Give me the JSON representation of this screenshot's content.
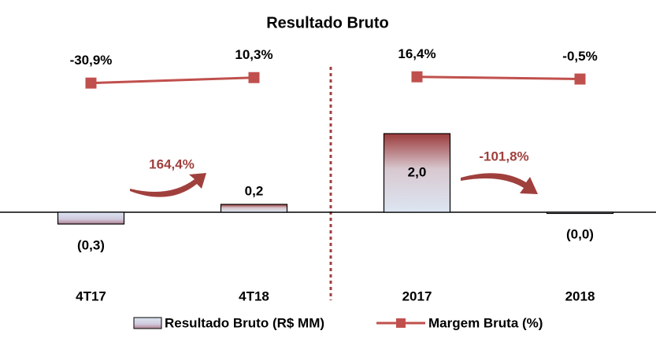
{
  "chart_data": {
    "type": "bar",
    "title": "Resultado Bruto",
    "categories": [
      "4T17",
      "4T18",
      "2017",
      "2018"
    ],
    "series": [
      {
        "name": "Resultado Bruto (R$ MM)",
        "type": "bar",
        "color": "#9b3a3a",
        "color2": "#dce6f2",
        "values": [
          -0.3,
          0.2,
          2.0,
          -0.02
        ],
        "value_labels": [
          "(0,3)",
          "0,2",
          "2,0",
          "(0,0)"
        ]
      },
      {
        "name": "Margem Bruta (%)",
        "type": "line",
        "axis": "y2",
        "color": "#c0504d",
        "values": [
          -30.9,
          10.3,
          16.4,
          -0.5
        ],
        "value_labels": [
          "-30,9%",
          "10,3%",
          "16,4%",
          "-0,5%"
        ]
      }
    ],
    "ylim": [
      -1.5,
      4.2
    ],
    "y2lim": [
      -1450,
      240
    ],
    "annotations": [
      "164,4%",
      "-101,8%"
    ]
  }
}
